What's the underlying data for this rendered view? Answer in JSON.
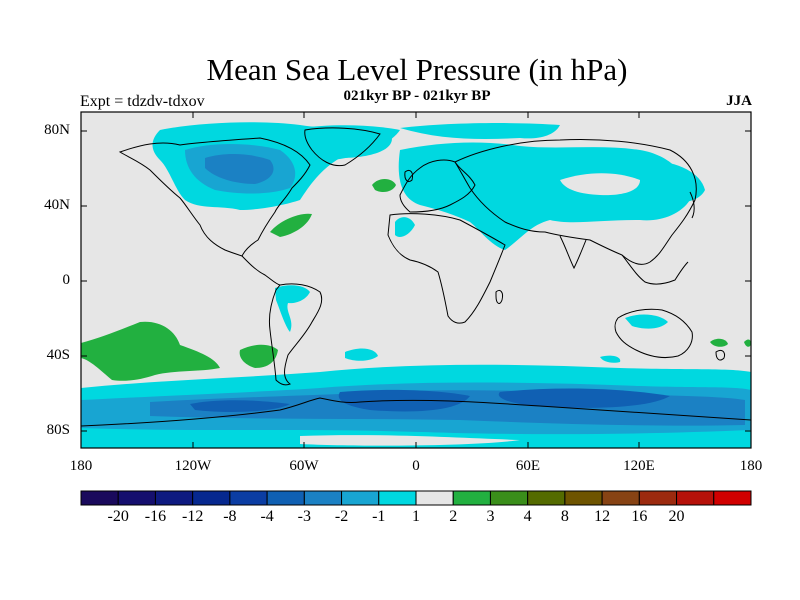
{
  "title": "Mean Sea Level Pressure (in hPa)",
  "subtitle": "021kyr BP - 021kyr BP",
  "experiment_label": "Expt = tdzdv-tdxov",
  "season": "JJA",
  "lat_ticks": [
    "80N",
    "40N",
    "0",
    "40S",
    "80S"
  ],
  "lon_ticks": [
    "180",
    "120W",
    "60W",
    "0",
    "60E",
    "120E",
    "180"
  ],
  "colorbar": {
    "colors": [
      "#1a0a5c",
      "#150f6e",
      "#0e1a80",
      "#06288f",
      "#0b3da3",
      "#1060b3",
      "#1b81c4",
      "#18a5d2",
      "#00d8e0",
      "#e6e6e6",
      "#22b040",
      "#3a8e1a",
      "#546b00",
      "#6e5400",
      "#874314",
      "#9c2a0f",
      "#b6110a",
      "#d10000"
    ],
    "labels": [
      "-20",
      "-16",
      "-12",
      "-8",
      "-4",
      "-3",
      "-2",
      "-1",
      "1",
      "2",
      "3",
      "4",
      "8",
      "12",
      "16",
      "20"
    ]
  },
  "colors": {
    "background": "#e6e6e6",
    "cyan": "#00d8e0",
    "light_blue": "#1b81c4",
    "mid_blue": "#1060b3",
    "green": "#22b040",
    "coast": "#000000"
  }
}
